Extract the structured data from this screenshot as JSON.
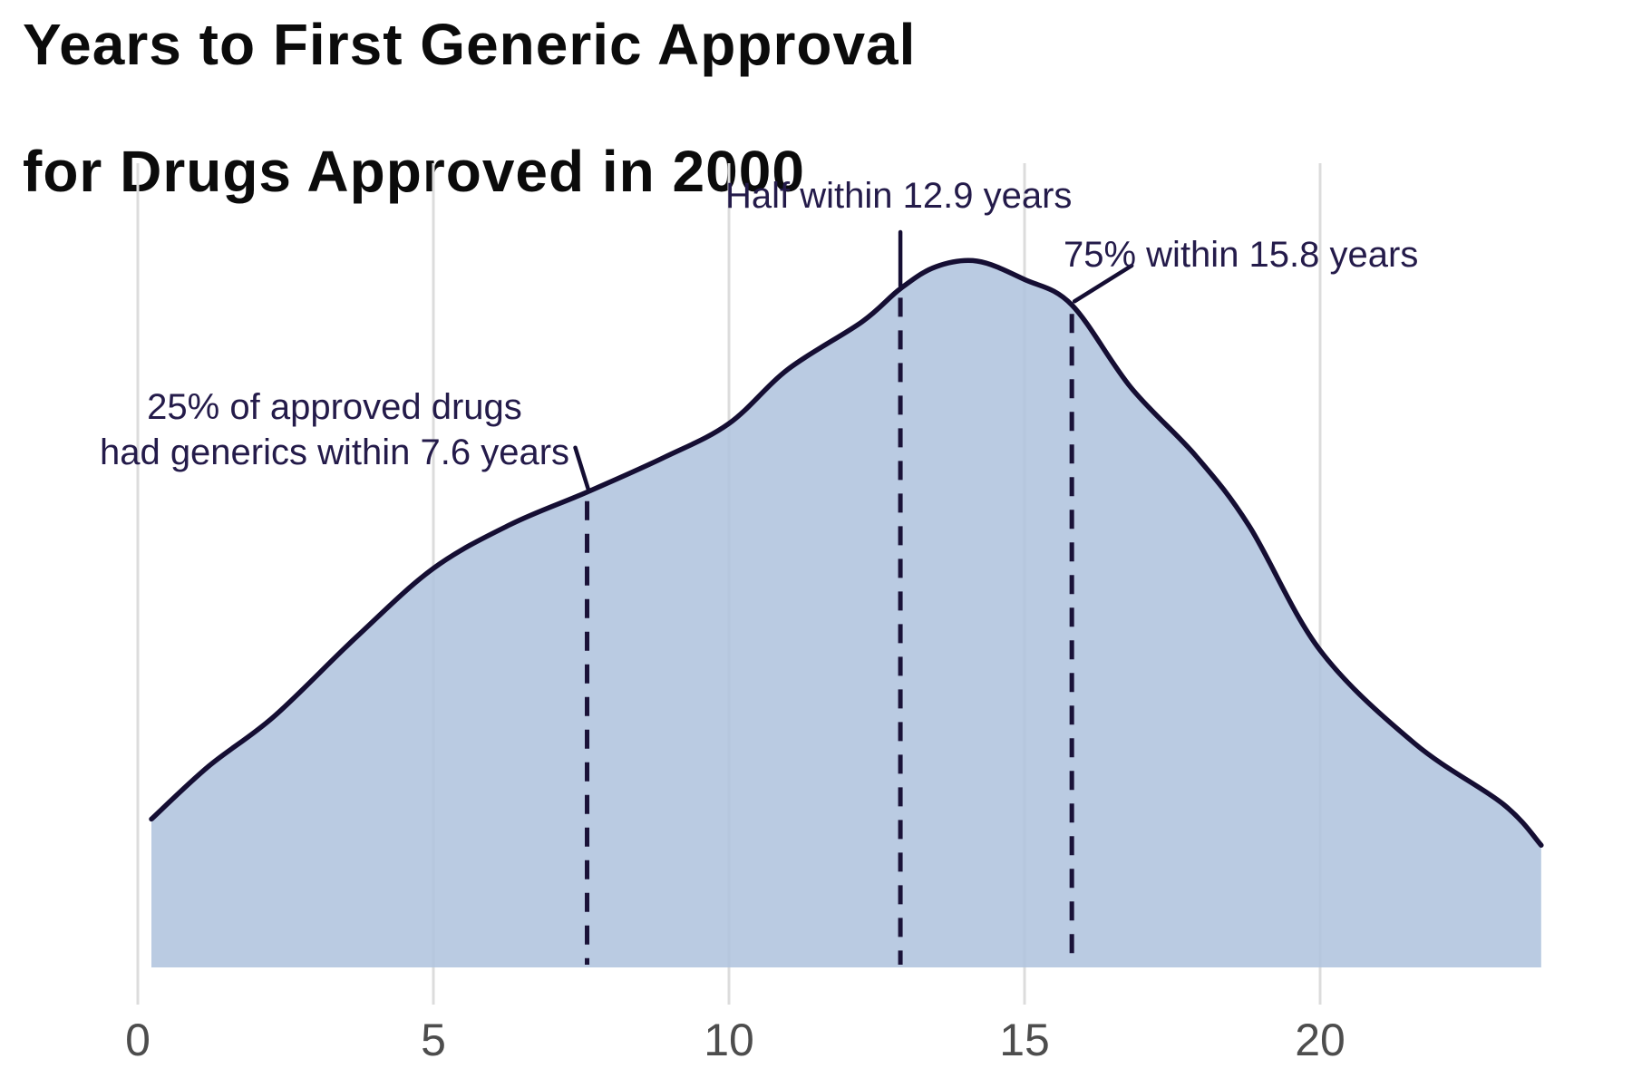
{
  "chart_data": {
    "type": "area",
    "subtype": "kde-density",
    "title_line1": "Years to First Generic Approval",
    "title_line2": "for Drugs Approved in 2000",
    "xlabel": "",
    "ylabel": "",
    "x_ticks": [
      "0",
      "5",
      "10",
      "15",
      "20"
    ],
    "x_tick_years": [
      0,
      5,
      10,
      15,
      20
    ],
    "x_range_years": [
      0.23,
      23.74
    ],
    "y_range_density": [
      0,
      1.05
    ],
    "grid": "vertical-x-gridlines-only",
    "legend": "none",
    "series": [
      {
        "name": "years-to-first-generic-approval-density",
        "points": [
          [
            0.23,
            0.21
          ],
          [
            1.2,
            0.285
          ],
          [
            2.3,
            0.355
          ],
          [
            3.7,
            0.468
          ],
          [
            5.0,
            0.565
          ],
          [
            6.3,
            0.627
          ],
          [
            7.6,
            0.673
          ],
          [
            8.9,
            0.722
          ],
          [
            10.0,
            0.77
          ],
          [
            11.0,
            0.847
          ],
          [
            12.25,
            0.914
          ],
          [
            12.9,
            0.961
          ],
          [
            13.5,
            0.992
          ],
          [
            14.2,
            1.0
          ],
          [
            15.0,
            0.974
          ],
          [
            15.8,
            0.938
          ],
          [
            16.8,
            0.821
          ],
          [
            17.9,
            0.724
          ],
          [
            18.8,
            0.625
          ],
          [
            20.0,
            0.449
          ],
          [
            21.6,
            0.317
          ],
          [
            23.1,
            0.231
          ],
          [
            23.74,
            0.173
          ]
        ]
      }
    ],
    "quartile_lines": {
      "q1_years": 7.6,
      "median_years": 12.9,
      "q3_years": 15.8
    },
    "annotations": {
      "q1": {
        "line1": "25% of approved drugs",
        "line2": "had generics within 7.6 years",
        "x_years": 7.6
      },
      "median": {
        "text": "Half within 12.9 years",
        "x_years": 12.9
      },
      "q3": {
        "text": "75% within 15.8 years",
        "x_years": 15.8
      }
    },
    "colors": {
      "fill": "#b0c4de",
      "curve_line": "#150e33",
      "dashed_line": "#1a1238",
      "annotation_text": "#241b4a",
      "tick_text": "#4d4d4d",
      "gridline": "#dcdcdc",
      "title_text": "#0b0b0b",
      "background": "#ffffff"
    }
  }
}
